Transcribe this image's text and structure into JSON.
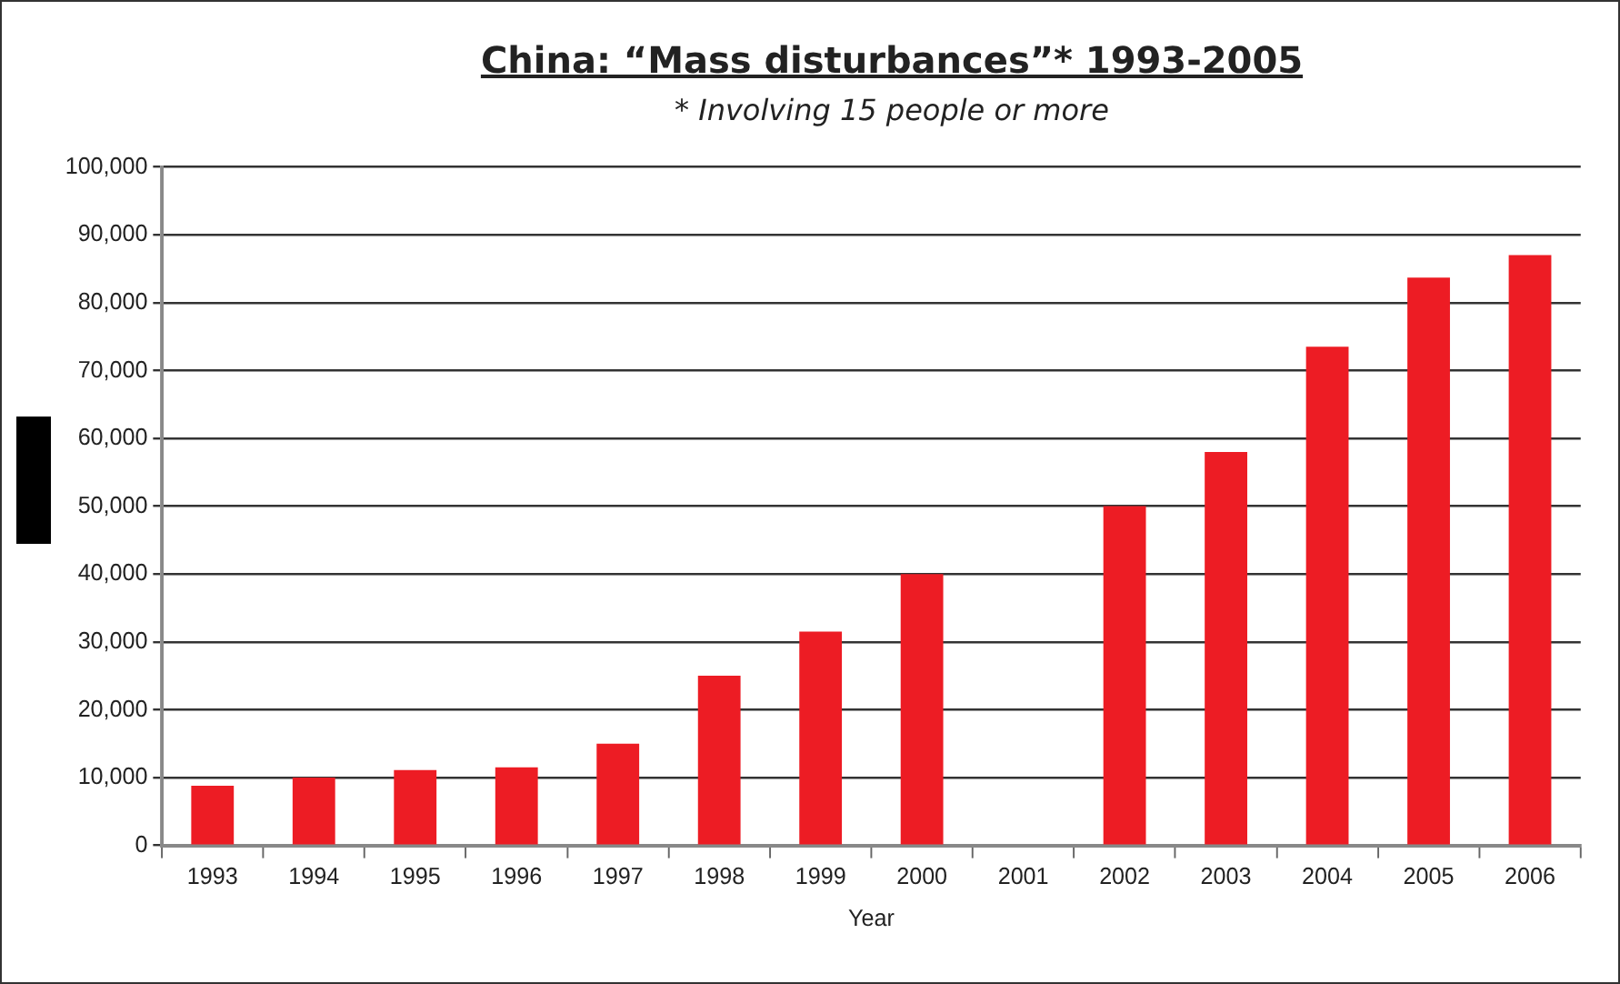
{
  "chart_data": {
    "type": "bar",
    "title": "China: “Mass disturbances”* 1993-2005",
    "subtitle": "* Involving 15 people or more",
    "xlabel": "Year",
    "categories": [
      "1993",
      "1994",
      "1995",
      "1996",
      "1997",
      "1998",
      "1999",
      "2000",
      "2001",
      "2002",
      "2003",
      "2004",
      "2005",
      "2006"
    ],
    "values": [
      8800,
      10000,
      11100,
      11500,
      15000,
      25000,
      31500,
      40000,
      null,
      50000,
      58000,
      73500,
      83700,
      87000
    ],
    "color": "#ed1c24",
    "ylim": [
      0,
      100000
    ],
    "yticks": [
      {
        "value": 0,
        "label": "0"
      },
      {
        "value": 10000,
        "label": "10,000"
      },
      {
        "value": 20000,
        "label": "20,000"
      },
      {
        "value": 30000,
        "label": "30,000"
      },
      {
        "value": 40000,
        "label": "40,000"
      },
      {
        "value": 50000,
        "label": "50,000"
      },
      {
        "value": 60000,
        "label": "60,000"
      },
      {
        "value": 70000,
        "label": "70,000"
      },
      {
        "value": 80000,
        "label": "80,000"
      },
      {
        "value": 90000,
        "label": "90,000"
      },
      {
        "value": 100000,
        "label": "100,000"
      }
    ],
    "grid": "y",
    "legend": false
  }
}
